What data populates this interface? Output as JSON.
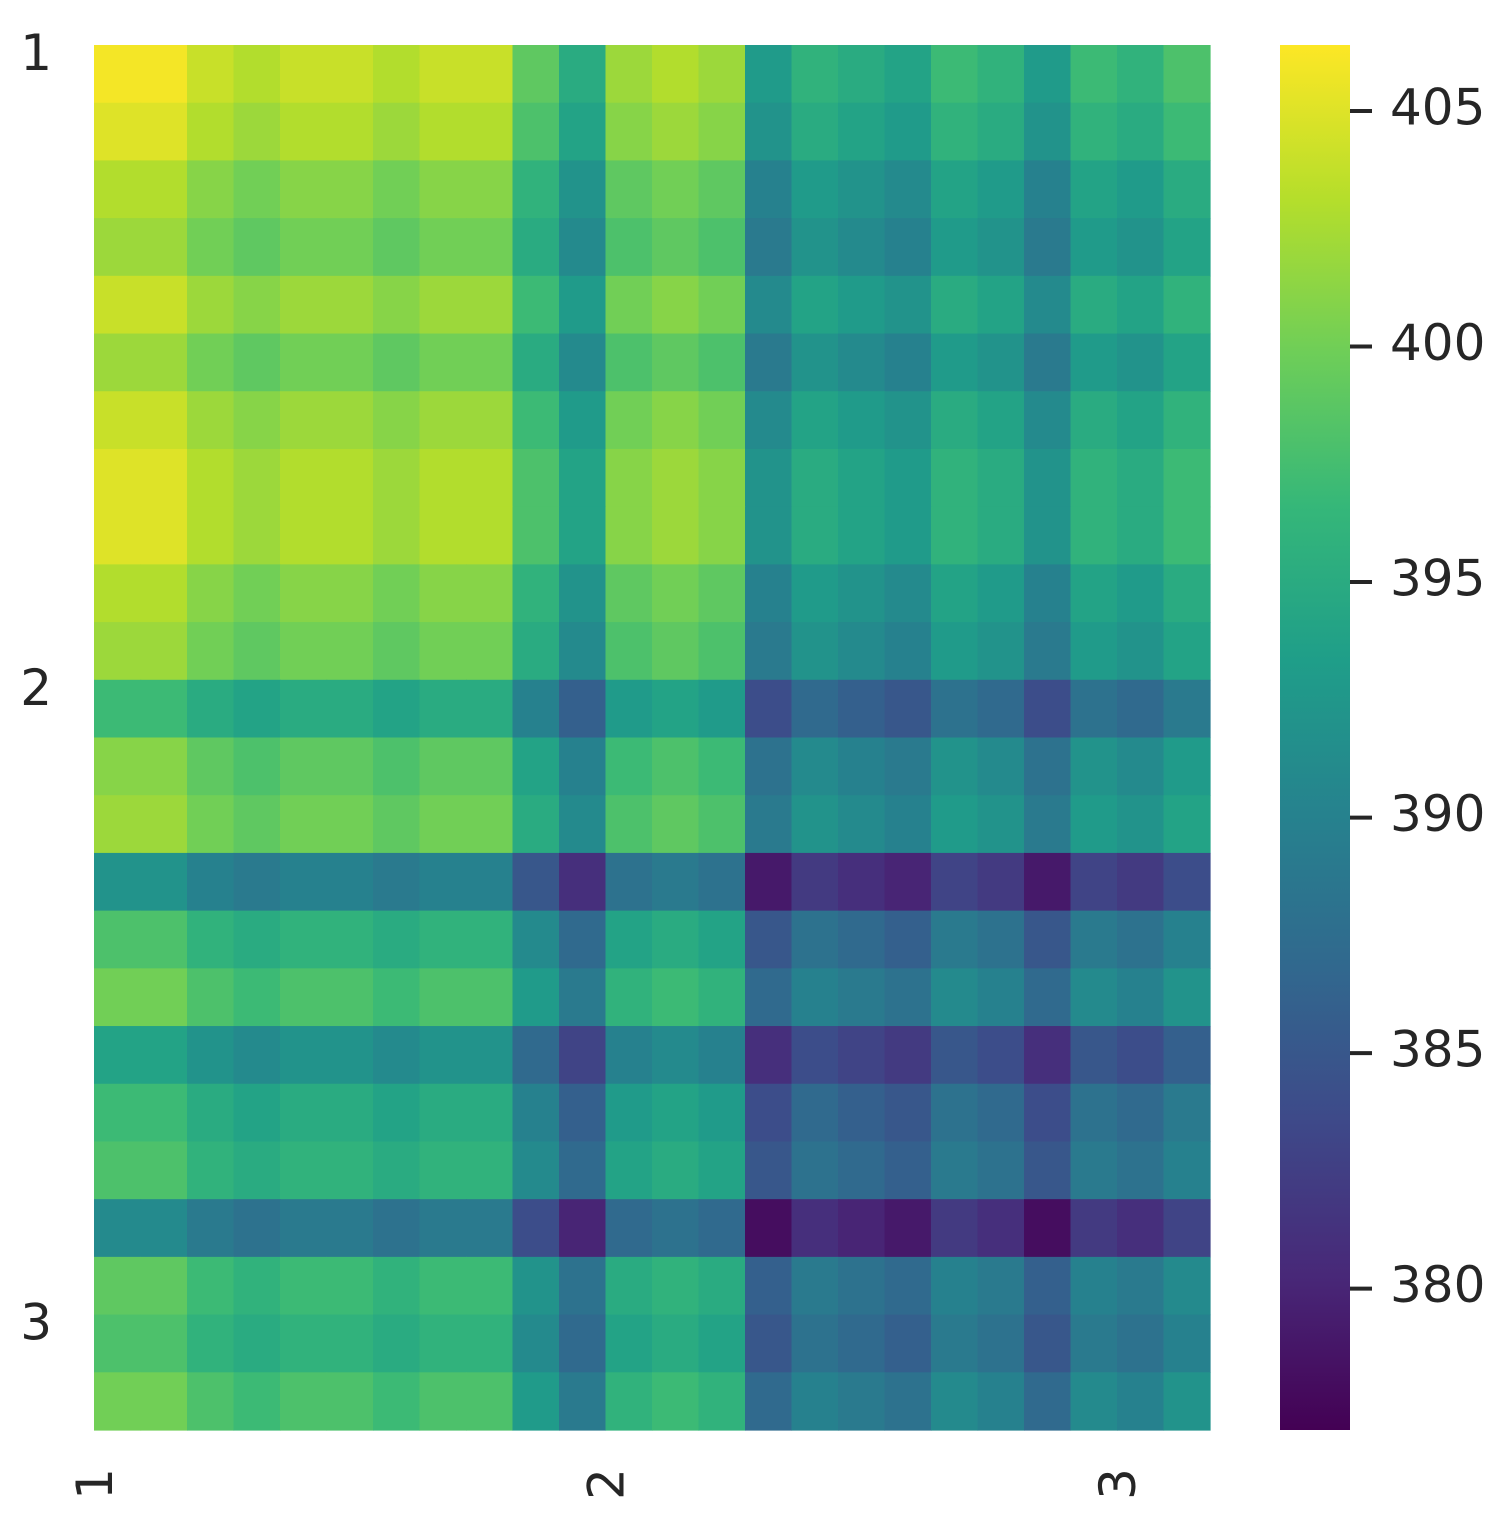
{
  "chart_data": {
    "type": "heatmap",
    "colormap": "viridis",
    "x": [
      "1",
      null,
      null,
      null,
      null,
      null,
      null,
      null,
      null,
      null,
      null,
      "2",
      null,
      null,
      null,
      null,
      null,
      null,
      null,
      null,
      null,
      null,
      "3",
      null
    ],
    "y": [
      "1",
      null,
      null,
      null,
      null,
      null,
      null,
      null,
      null,
      null,
      null,
      "2",
      null,
      null,
      null,
      null,
      null,
      null,
      null,
      null,
      null,
      null,
      "3",
      null
    ],
    "z": [
      [
        406,
        406,
        404,
        403,
        404,
        404,
        403,
        404,
        404,
        399,
        395,
        402,
        403,
        402,
        393,
        396,
        395,
        394,
        397,
        396,
        393,
        397,
        396,
        398
      ],
      [
        405,
        405,
        403,
        402,
        403,
        403,
        402,
        403,
        403,
        398,
        394,
        401,
        402,
        401,
        392,
        395,
        394,
        393,
        396,
        395,
        392,
        396,
        395,
        397
      ],
      [
        403,
        403,
        401,
        400,
        401,
        401,
        400,
        401,
        401,
        396,
        392,
        399,
        400,
        399,
        390,
        393,
        392,
        391,
        394,
        393,
        390,
        394,
        393,
        395
      ],
      [
        402,
        402,
        400,
        399,
        400,
        400,
        399,
        400,
        400,
        395,
        391,
        398,
        399,
        398,
        389,
        392,
        391,
        390,
        393,
        392,
        389,
        393,
        392,
        394
      ],
      [
        404,
        404,
        402,
        401,
        402,
        402,
        401,
        402,
        402,
        397,
        393,
        400,
        401,
        400,
        391,
        394,
        393,
        392,
        395,
        394,
        391,
        395,
        394,
        396
      ],
      [
        402,
        402,
        400,
        399,
        400,
        400,
        399,
        400,
        400,
        395,
        391,
        398,
        399,
        398,
        389,
        392,
        391,
        390,
        393,
        392,
        389,
        393,
        392,
        394
      ],
      [
        404,
        404,
        402,
        401,
        402,
        402,
        401,
        402,
        402,
        397,
        393,
        400,
        401,
        400,
        391,
        394,
        393,
        392,
        395,
        394,
        391,
        395,
        394,
        396
      ],
      [
        405,
        405,
        403,
        402,
        403,
        403,
        402,
        403,
        403,
        398,
        394,
        401,
        402,
        401,
        392,
        395,
        394,
        393,
        396,
        395,
        392,
        396,
        395,
        397
      ],
      [
        405,
        405,
        403,
        402,
        403,
        403,
        402,
        403,
        403,
        398,
        394,
        401,
        402,
        401,
        392,
        395,
        394,
        393,
        396,
        395,
        392,
        396,
        395,
        397
      ],
      [
        403,
        403,
        401,
        400,
        401,
        401,
        400,
        401,
        401,
        396,
        392,
        399,
        400,
        399,
        390,
        393,
        392,
        391,
        394,
        393,
        390,
        394,
        393,
        395
      ],
      [
        402,
        402,
        400,
        399,
        400,
        400,
        399,
        400,
        400,
        395,
        391,
        398,
        399,
        398,
        389,
        392,
        391,
        390,
        393,
        392,
        389,
        393,
        392,
        394
      ],
      [
        397,
        397,
        395,
        394,
        395,
        395,
        394,
        395,
        395,
        390,
        386,
        393,
        394,
        393,
        384,
        387,
        386,
        385,
        388,
        387,
        384,
        388,
        387,
        389
      ],
      [
        401,
        401,
        399,
        398,
        399,
        399,
        398,
        399,
        399,
        394,
        390,
        397,
        398,
        397,
        388,
        391,
        390,
        389,
        392,
        391,
        388,
        392,
        391,
        393
      ],
      [
        402,
        402,
        400,
        399,
        400,
        400,
        399,
        400,
        400,
        395,
        391,
        398,
        399,
        398,
        389,
        392,
        391,
        390,
        393,
        392,
        389,
        393,
        392,
        394
      ],
      [
        392,
        392,
        390,
        389,
        390,
        390,
        389,
        390,
        390,
        385,
        381,
        388,
        389,
        388,
        379,
        382,
        381,
        380,
        383,
        382,
        379,
        383,
        382,
        384
      ],
      [
        398,
        398,
        396,
        395,
        396,
        396,
        395,
        396,
        396,
        391,
        387,
        394,
        395,
        394,
        385,
        388,
        387,
        386,
        389,
        388,
        385,
        389,
        388,
        390
      ],
      [
        400,
        400,
        398,
        397,
        398,
        398,
        397,
        398,
        398,
        393,
        389,
        396,
        397,
        396,
        387,
        390,
        389,
        388,
        391,
        390,
        387,
        391,
        390,
        392
      ],
      [
        394,
        394,
        392,
        391,
        392,
        392,
        391,
        392,
        392,
        387,
        383,
        390,
        391,
        390,
        381,
        384,
        383,
        382,
        385,
        384,
        381,
        385,
        384,
        386
      ],
      [
        397,
        397,
        395,
        394,
        395,
        395,
        394,
        395,
        395,
        390,
        386,
        393,
        394,
        393,
        384,
        387,
        386,
        385,
        388,
        387,
        384,
        388,
        387,
        389
      ],
      [
        398,
        398,
        396,
        395,
        396,
        396,
        395,
        396,
        396,
        391,
        387,
        394,
        395,
        394,
        385,
        388,
        387,
        386,
        389,
        388,
        385,
        389,
        388,
        390
      ],
      [
        391,
        391,
        389,
        388,
        389,
        389,
        388,
        389,
        389,
        384,
        380,
        387,
        388,
        387,
        378,
        381,
        380,
        379,
        382,
        381,
        378,
        382,
        381,
        383
      ],
      [
        399,
        399,
        397,
        396,
        397,
        397,
        396,
        397,
        397,
        392,
        388,
        395,
        396,
        395,
        386,
        389,
        388,
        387,
        390,
        389,
        386,
        390,
        389,
        391
      ],
      [
        398,
        398,
        396,
        395,
        396,
        396,
        395,
        396,
        396,
        391,
        387,
        394,
        395,
        394,
        385,
        388,
        387,
        386,
        389,
        388,
        385,
        389,
        388,
        390
      ],
      [
        400,
        400,
        398,
        397,
        398,
        398,
        397,
        398,
        398,
        393,
        389,
        396,
        397,
        396,
        387,
        390,
        389,
        388,
        391,
        390,
        387,
        391,
        390,
        392
      ]
    ],
    "clim": [
      377,
      406.4
    ],
    "colorbar_ticks": [
      380,
      385,
      390,
      395,
      400,
      405
    ]
  }
}
